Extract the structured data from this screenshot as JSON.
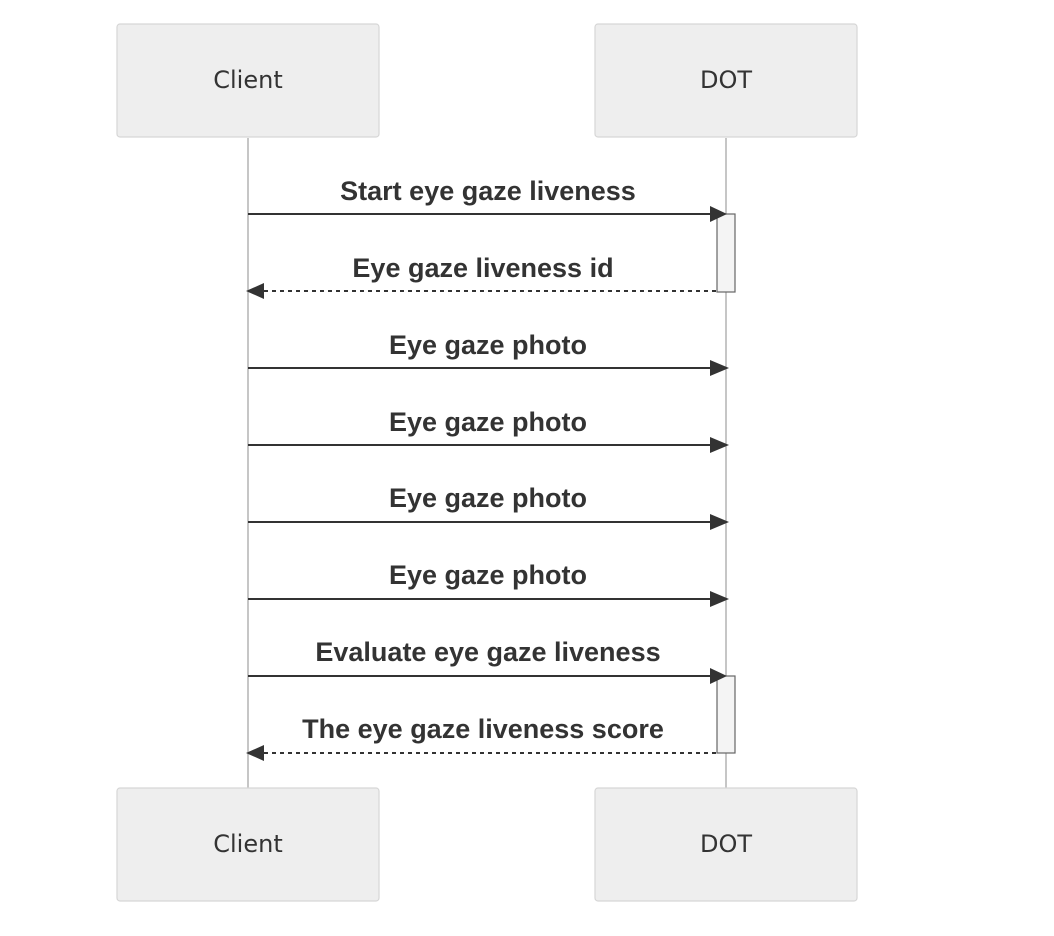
{
  "participants": [
    {
      "id": "client",
      "label": "Client"
    },
    {
      "id": "dot",
      "label": "DOT"
    }
  ],
  "messages": [
    {
      "from": "client",
      "to": "dot",
      "label": "Start eye gaze liveness",
      "style": "solid"
    },
    {
      "from": "dot",
      "to": "client",
      "label": "Eye gaze liveness id",
      "style": "dashed"
    },
    {
      "from": "client",
      "to": "dot",
      "label": "Eye gaze photo",
      "style": "solid"
    },
    {
      "from": "client",
      "to": "dot",
      "label": "Eye gaze photo",
      "style": "solid"
    },
    {
      "from": "client",
      "to": "dot",
      "label": "Eye gaze photo",
      "style": "solid"
    },
    {
      "from": "client",
      "to": "dot",
      "label": "Eye gaze photo",
      "style": "solid"
    },
    {
      "from": "client",
      "to": "dot",
      "label": "Evaluate eye gaze liveness",
      "style": "solid"
    },
    {
      "from": "dot",
      "to": "client",
      "label": "The eye gaze liveness score",
      "style": "dashed"
    }
  ],
  "activations": [
    {
      "participant": "dot",
      "from_message": 0,
      "to_message": 1
    },
    {
      "participant": "dot",
      "from_message": 6,
      "to_message": 7
    }
  ]
}
